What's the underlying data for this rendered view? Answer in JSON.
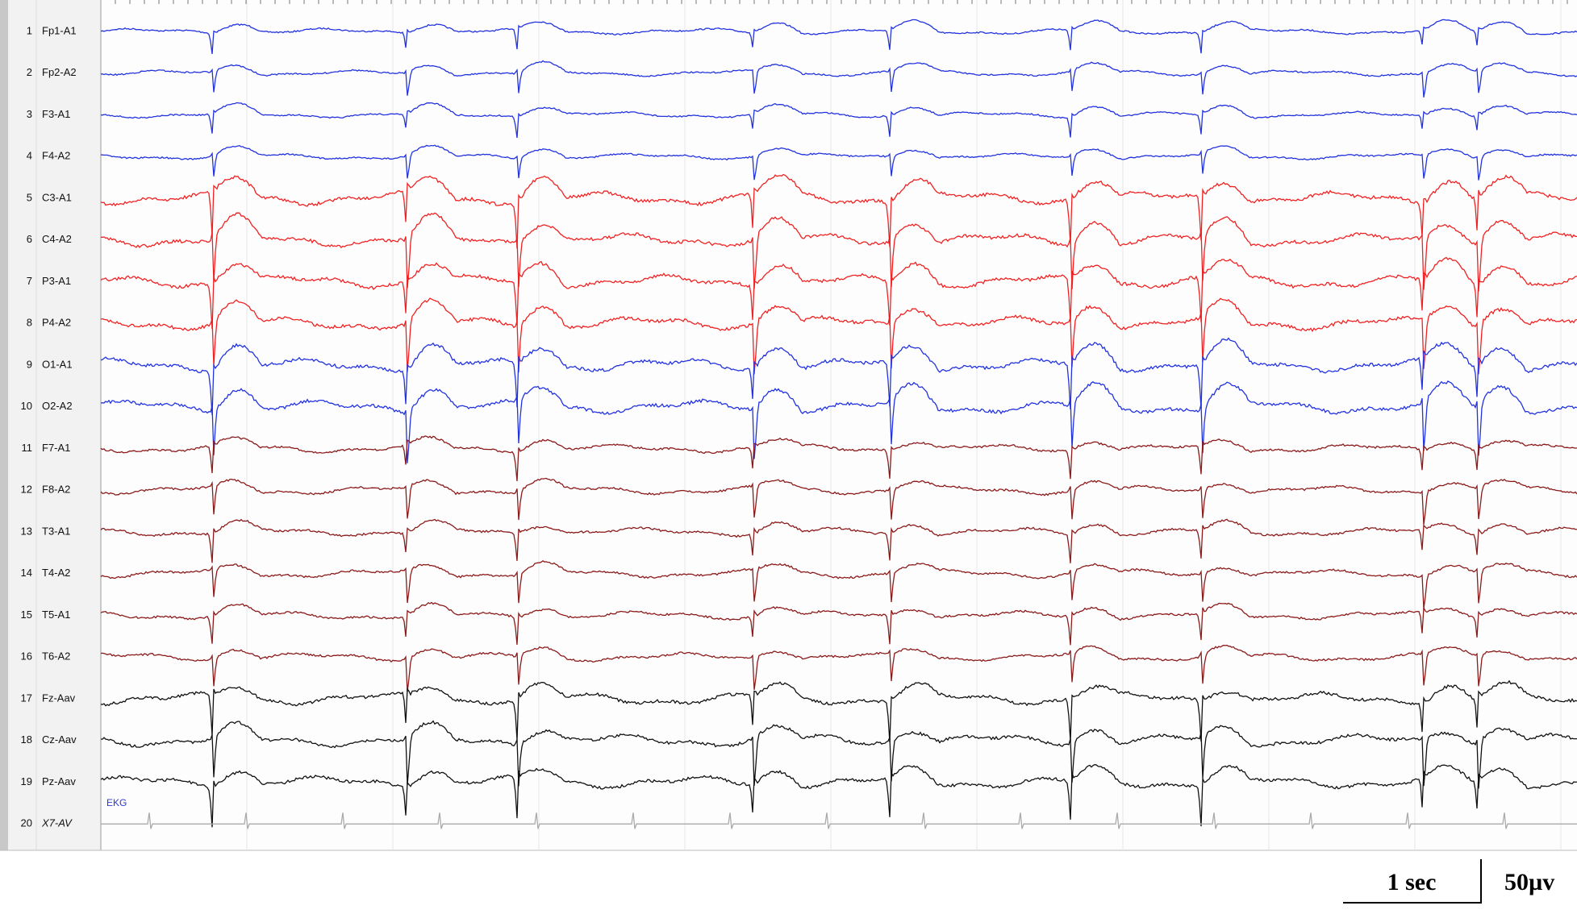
{
  "channels": [
    {
      "number": "1",
      "name": "Fp1-A1"
    },
    {
      "number": "2",
      "name": "Fp2-A2"
    },
    {
      "number": "3",
      "name": "F3-A1"
    },
    {
      "number": "4",
      "name": "F4-A2"
    },
    {
      "number": "5",
      "name": "C3-A1"
    },
    {
      "number": "6",
      "name": "C4-A2"
    },
    {
      "number": "7",
      "name": "P3-A1"
    },
    {
      "number": "8",
      "name": "P4-A2"
    },
    {
      "number": "9",
      "name": "O1-A1"
    },
    {
      "number": "10",
      "name": "O2-A2"
    },
    {
      "number": "11",
      "name": "F7-A1"
    },
    {
      "number": "12",
      "name": "F8-A2"
    },
    {
      "number": "13",
      "name": "T3-A1"
    },
    {
      "number": "14",
      "name": "T4-A2"
    },
    {
      "number": "15",
      "name": "T5-A1"
    },
    {
      "number": "16",
      "name": "T6-A2"
    },
    {
      "number": "17",
      "name": "Fz-Aav"
    },
    {
      "number": "18",
      "name": "Cz-Aav"
    },
    {
      "number": "19",
      "name": "Pz-Aav"
    },
    {
      "number": "20",
      "name": "X7-AV"
    }
  ],
  "ekg_label": "EKG",
  "scale_bar": {
    "time": "1 sec",
    "amplitude": "50µv"
  }
}
